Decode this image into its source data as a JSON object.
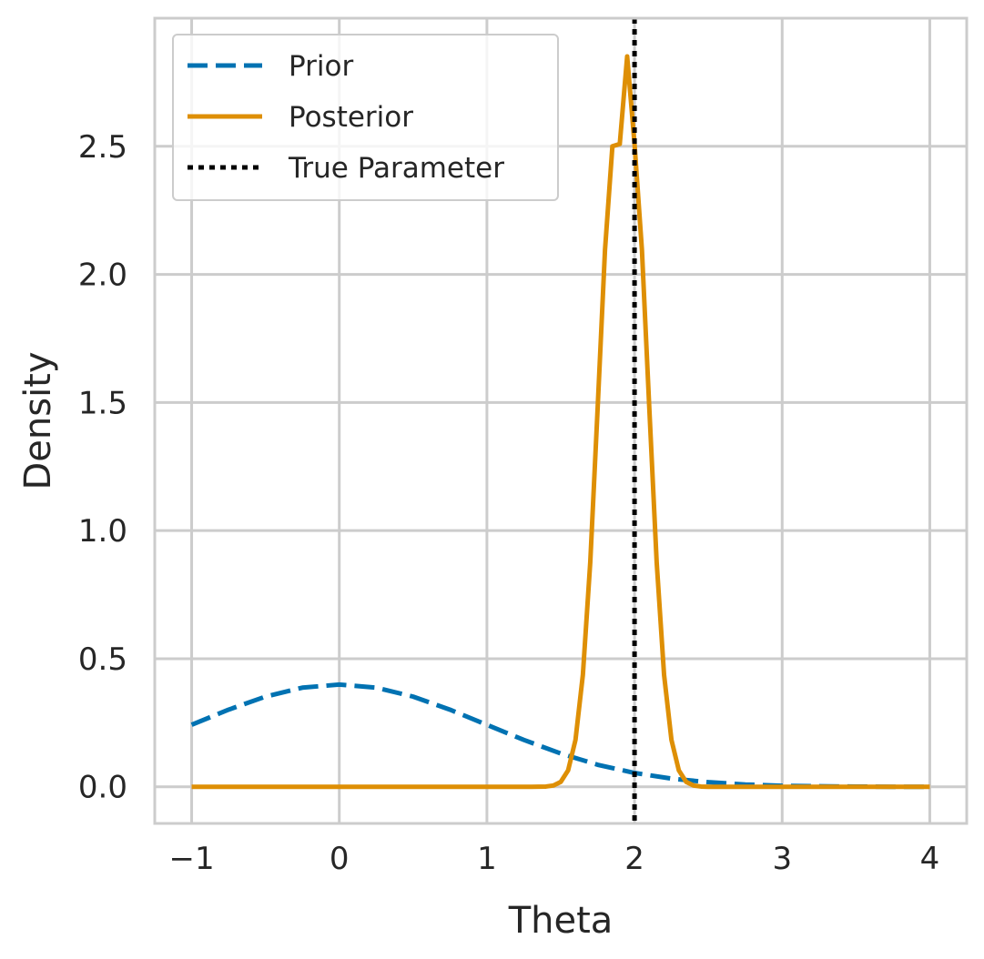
{
  "chart_data": {
    "type": "line",
    "xlabel": "Theta",
    "ylabel": "Density",
    "xlim": [
      -1.25,
      4.25
    ],
    "ylim": [
      -0.143,
      3.0
    ],
    "xticks": [
      -1,
      0,
      1,
      2,
      3,
      4
    ],
    "xtick_labels": [
      "−1",
      "0",
      "1",
      "2",
      "3",
      "4"
    ],
    "yticks": [
      0.0,
      0.5,
      1.0,
      1.5,
      2.0,
      2.5
    ],
    "ytick_labels": [
      "0.0",
      "0.5",
      "1.0",
      "1.5",
      "2.0",
      "2.5"
    ],
    "grid": true,
    "legend_position": "top-left",
    "series": [
      {
        "name": "Prior",
        "style": "dashed",
        "color": "#0072b2",
        "x": [
          -1.0,
          -0.75,
          -0.5,
          -0.25,
          0.0,
          0.25,
          0.5,
          0.75,
          1.0,
          1.25,
          1.5,
          1.75,
          2.0,
          2.25,
          2.5,
          2.75,
          3.0,
          3.25,
          3.5,
          3.75,
          4.0
        ],
        "y": [
          0.242,
          0.301,
          0.352,
          0.387,
          0.399,
          0.387,
          0.352,
          0.301,
          0.242,
          0.183,
          0.13,
          0.086,
          0.054,
          0.032,
          0.018,
          0.009,
          0.004,
          0.002,
          0.001,
          0.0,
          0.0
        ]
      },
      {
        "name": "Posterior",
        "style": "solid",
        "color": "#de8f05",
        "x": [
          -1.0,
          1.0,
          1.3,
          1.4,
          1.45,
          1.5,
          1.55,
          1.6,
          1.65,
          1.7,
          1.75,
          1.8,
          1.85,
          1.9,
          1.95,
          2.0,
          2.05,
          2.1,
          2.15,
          2.2,
          2.25,
          2.3,
          2.35,
          2.4,
          2.45,
          2.5,
          2.6,
          3.0,
          4.0
        ],
        "y": [
          0.0,
          0.0,
          0.0,
          0.001,
          0.005,
          0.019,
          0.064,
          0.183,
          0.437,
          0.876,
          1.478,
          2.096,
          2.5,
          2.509,
          2.851,
          2.509,
          2.096,
          1.478,
          0.876,
          0.437,
          0.183,
          0.064,
          0.019,
          0.005,
          0.001,
          0.0,
          0.0,
          0.0,
          0.0
        ]
      },
      {
        "name": "True Parameter",
        "style": "dotted",
        "color": "#000000",
        "vline_x": 2.0
      }
    ]
  }
}
